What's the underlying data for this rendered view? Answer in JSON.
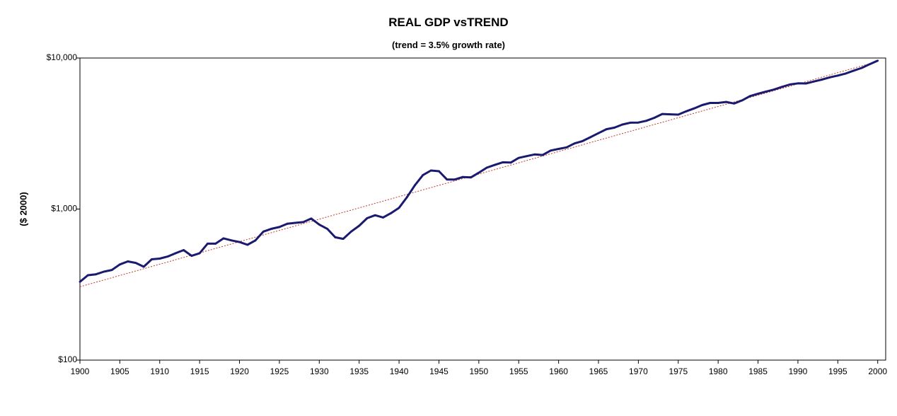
{
  "chart_data": {
    "type": "line",
    "title": "REAL GDP vsTREND",
    "subtitle": "(trend = 3.5% growth rate)",
    "xlabel": "",
    "ylabel": "($ 2000)",
    "yscale": "log",
    "ylim": [
      100,
      10000
    ],
    "xlim": [
      1900,
      2001
    ],
    "grid": false,
    "legend": "none",
    "y_ticks": [
      {
        "value": 100,
        "label": "$100"
      },
      {
        "value": 1000,
        "label": "$1,000"
      },
      {
        "value": 10000,
        "label": "$10,000"
      }
    ],
    "x_ticks": [
      "1900",
      "1905",
      "1910",
      "1915",
      "1920",
      "1925",
      "1930",
      "1935",
      "1940",
      "1945",
      "1950",
      "1955",
      "1960",
      "1965",
      "1970",
      "1975",
      "1980",
      "1985",
      "1990",
      "1995",
      "2000"
    ],
    "colors": {
      "gdp": "#1a1a6e",
      "trend": "#c0392b"
    },
    "series": [
      {
        "name": "Real GDP",
        "style": "solid",
        "x": [
          1900,
          1901,
          1902,
          1903,
          1904,
          1905,
          1906,
          1907,
          1908,
          1909,
          1910,
          1911,
          1912,
          1913,
          1914,
          1915,
          1916,
          1917,
          1918,
          1919,
          1920,
          1921,
          1922,
          1923,
          1924,
          1925,
          1926,
          1927,
          1928,
          1929,
          1930,
          1931,
          1932,
          1933,
          1934,
          1935,
          1936,
          1937,
          1938,
          1939,
          1940,
          1941,
          1942,
          1943,
          1944,
          1945,
          1946,
          1947,
          1948,
          1949,
          1950,
          1951,
          1952,
          1953,
          1954,
          1955,
          1956,
          1957,
          1958,
          1959,
          1960,
          1961,
          1962,
          1963,
          1964,
          1965,
          1966,
          1967,
          1968,
          1969,
          1970,
          1971,
          1972,
          1973,
          1974,
          1975,
          1976,
          1977,
          1978,
          1979,
          1980,
          1981,
          1982,
          1983,
          1984,
          1985,
          1986,
          1987,
          1988,
          1989,
          1990,
          1991,
          1992,
          1993,
          1994,
          1995,
          1996,
          1997,
          1998,
          1999,
          2000
        ],
        "values": [
          330,
          365,
          370,
          385,
          395,
          430,
          450,
          440,
          415,
          465,
          470,
          485,
          510,
          535,
          490,
          510,
          590,
          590,
          640,
          620,
          605,
          580,
          620,
          710,
          740,
          760,
          800,
          810,
          820,
          865,
          790,
          740,
          650,
          635,
          710,
          775,
          870,
          910,
          880,
          940,
          1020,
          1200,
          1440,
          1680,
          1800,
          1780,
          1570,
          1570,
          1630,
          1620,
          1740,
          1880,
          1960,
          2040,
          2030,
          2180,
          2240,
          2300,
          2280,
          2440,
          2500,
          2560,
          2720,
          2820,
          2990,
          3180,
          3380,
          3460,
          3630,
          3730,
          3740,
          3840,
          4020,
          4260,
          4240,
          4220,
          4440,
          4640,
          4880,
          5040,
          5040,
          5120,
          5000,
          5240,
          5600,
          5800,
          5990,
          6180,
          6440,
          6680,
          6800,
          6780,
          6990,
          7200,
          7450,
          7650,
          7900,
          8250,
          8600,
          9100,
          9600
        ]
      },
      {
        "name": "Trend (3.5% growth)",
        "style": "dashed",
        "x": [
          1900,
          2000
        ],
        "values": [
          306,
          9500
        ]
      }
    ]
  }
}
